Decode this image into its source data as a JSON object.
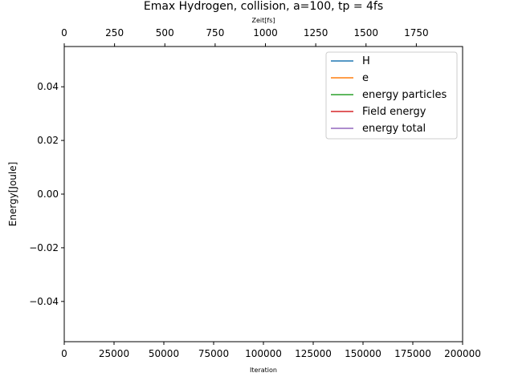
{
  "chart_data": {
    "type": "line",
    "title": "Emax Hydrogen, collision, a=100, tp = 4fs",
    "xlabel": "Iteration",
    "ylabel": "Energy[Joule]",
    "x2label": "Zeit[fs]",
    "xlim": [
      0,
      200000
    ],
    "x2lim": [
      0,
      1980
    ],
    "ylim": [
      -0.055,
      0.055
    ],
    "xticks": [
      0,
      25000,
      50000,
      75000,
      100000,
      125000,
      150000,
      175000,
      200000
    ],
    "x2ticks": [
      0,
      250,
      500,
      750,
      1000,
      1250,
      1500,
      1750
    ],
    "yticks": [
      -0.04,
      -0.02,
      0.0,
      0.02,
      0.04
    ],
    "ytick_labels": [
      "−0.04",
      "−0.02",
      "0.00",
      "0.02",
      "0.04"
    ],
    "grid": false,
    "legend_position": "top-right",
    "series": [
      {
        "name": "H",
        "color": "#1f77b4",
        "x": [],
        "y": []
      },
      {
        "name": "e",
        "color": "#ff7f0e",
        "x": [],
        "y": []
      },
      {
        "name": "energy particles",
        "color": "#2ca02c",
        "x": [],
        "y": []
      },
      {
        "name": "Field energy",
        "color": "#d62728",
        "x": [],
        "y": []
      },
      {
        "name": "energy total",
        "color": "#9467bd",
        "x": [],
        "y": []
      }
    ]
  }
}
